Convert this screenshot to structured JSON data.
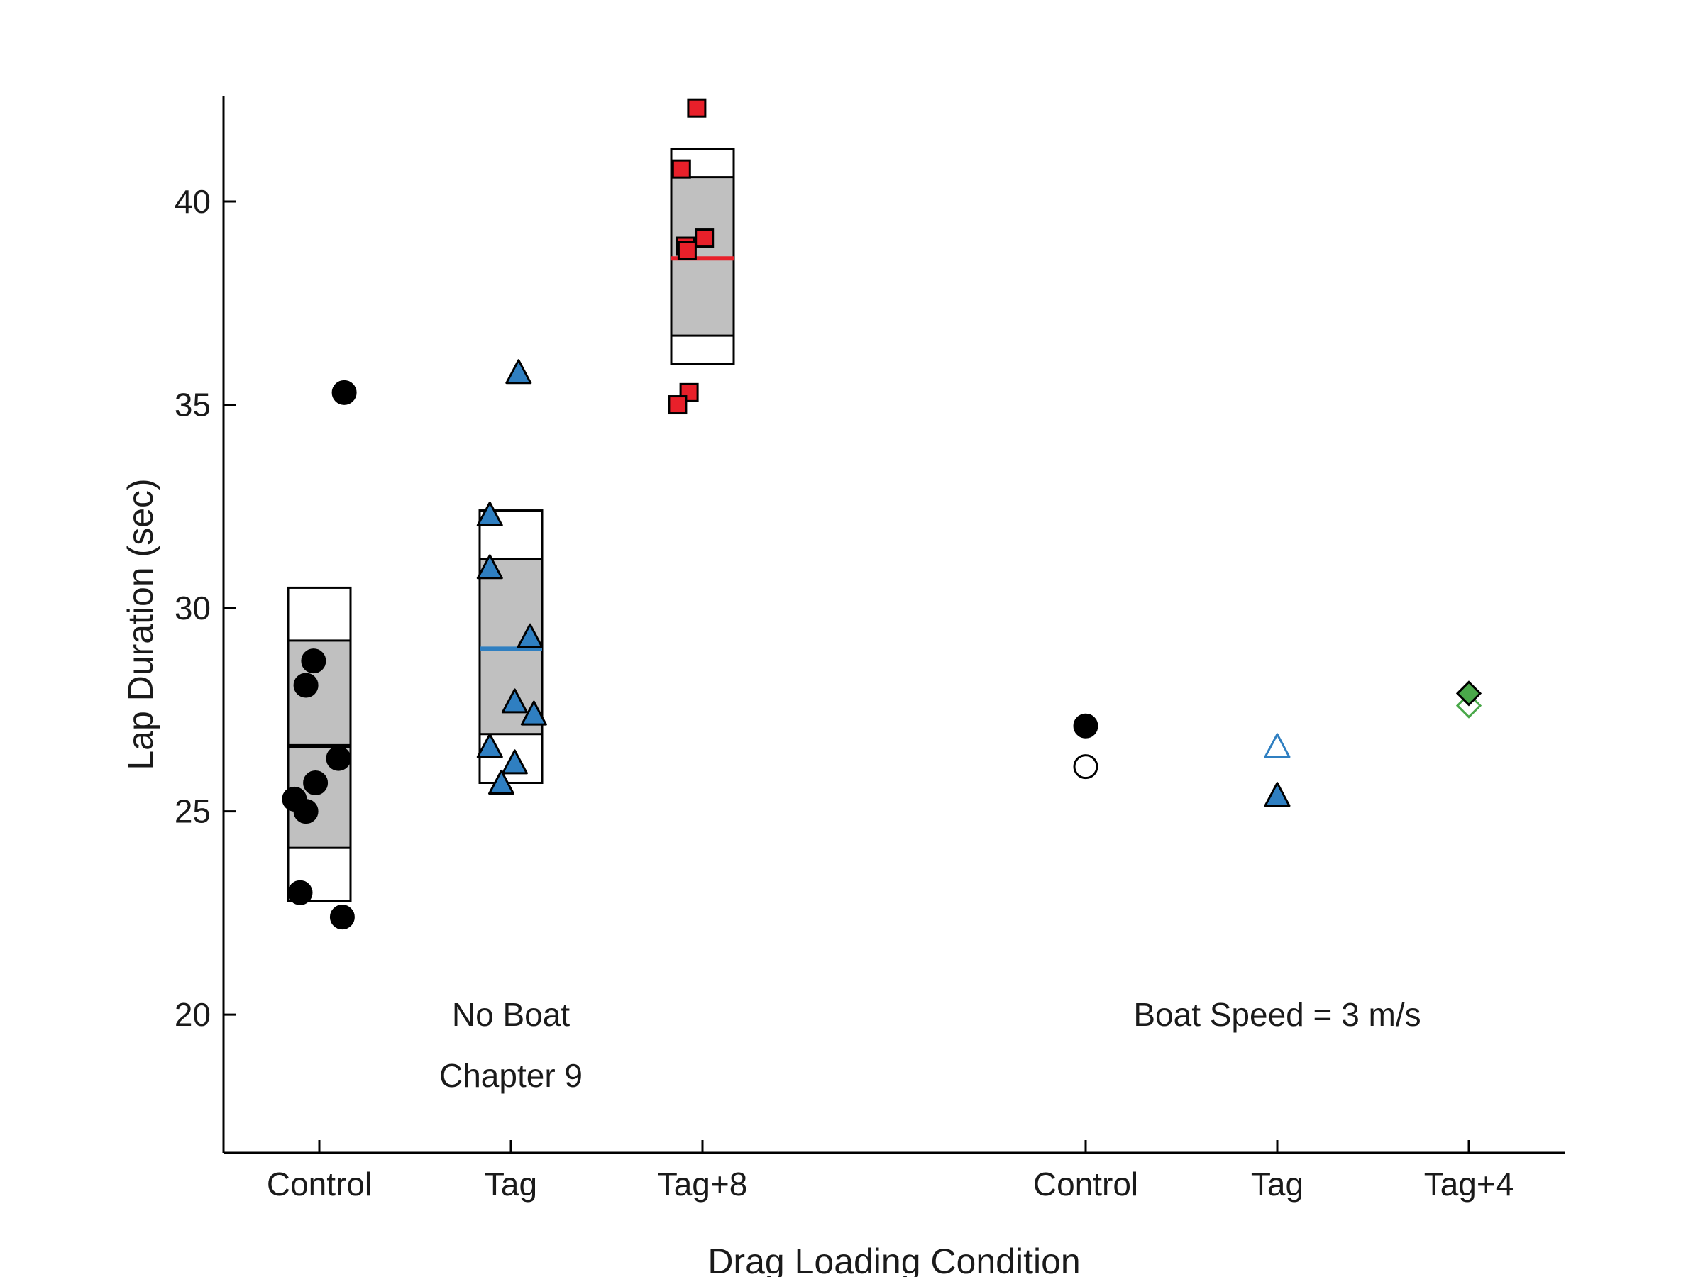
{
  "chart_data": {
    "type": "scatter",
    "title": "",
    "xlabel": "Drag Loading Condition",
    "ylabel": "Lap Duration (sec)",
    "ylim": [
      17,
      43
    ],
    "yticks": [
      20,
      25,
      30,
      35,
      40
    ],
    "grid": false,
    "colors": {
      "control": "#000000",
      "tag": "#2f7fc1",
      "tag_plus": "#e8202a",
      "tag4": "#4aa84a",
      "box_fill": "#c0c0c0",
      "axis": "#000000"
    },
    "categories": [
      {
        "label": "Control",
        "x": 1
      },
      {
        "label": "Tag",
        "x": 2
      },
      {
        "label": "Tag+8",
        "x": 3
      },
      {
        "label": "Control",
        "x": 5
      },
      {
        "label": "Tag",
        "x": 6
      },
      {
        "label": "Tag+4",
        "x": 7
      }
    ],
    "groups": [
      {
        "name": "No Boat Control",
        "x": 1,
        "marker": "circle",
        "color": "#000000",
        "box": {
          "outer_low": 22.8,
          "outer_high": 30.5,
          "inner_low": 24.1,
          "inner_high": 29.2,
          "median": 26.6
        },
        "points": [
          {
            "dx": 0.13,
            "y": 35.3
          },
          {
            "dx": -0.03,
            "y": 28.7
          },
          {
            "dx": -0.07,
            "y": 28.1
          },
          {
            "dx": 0.1,
            "y": 26.3
          },
          {
            "dx": -0.02,
            "y": 25.7
          },
          {
            "dx": -0.13,
            "y": 25.3
          },
          {
            "dx": -0.07,
            "y": 25.0
          },
          {
            "dx": -0.1,
            "y": 23.0
          },
          {
            "dx": 0.12,
            "y": 22.4
          }
        ]
      },
      {
        "name": "No Boat Tag",
        "x": 2,
        "marker": "triangle",
        "color": "#2f7fc1",
        "box": {
          "outer_low": 25.7,
          "outer_high": 32.4,
          "inner_low": 26.9,
          "inner_high": 31.2,
          "median": 29.0
        },
        "points": [
          {
            "dx": 0.04,
            "y": 35.8
          },
          {
            "dx": -0.11,
            "y": 32.3
          },
          {
            "dx": -0.11,
            "y": 31.0
          },
          {
            "dx": 0.1,
            "y": 29.3
          },
          {
            "dx": 0.02,
            "y": 27.7
          },
          {
            "dx": 0.12,
            "y": 27.4
          },
          {
            "dx": -0.11,
            "y": 26.6
          },
          {
            "dx": 0.02,
            "y": 26.2
          },
          {
            "dx": -0.05,
            "y": 25.7
          }
        ]
      },
      {
        "name": "No Boat Tag+8",
        "x": 3,
        "marker": "square",
        "color": "#e8202a",
        "box": {
          "outer_low": 36.0,
          "outer_high": 41.3,
          "inner_low": 36.7,
          "inner_high": 40.6,
          "median": 38.6
        },
        "points": [
          {
            "dx": -0.03,
            "y": 42.3
          },
          {
            "dx": -0.11,
            "y": 40.8
          },
          {
            "dx": 0.01,
            "y": 39.1
          },
          {
            "dx": -0.09,
            "y": 38.9
          },
          {
            "dx": -0.08,
            "y": 38.8
          },
          {
            "dx": -0.07,
            "y": 35.3
          },
          {
            "dx": -0.13,
            "y": 35.0
          }
        ]
      },
      {
        "name": "Boat Control",
        "x": 5,
        "marker": "circle",
        "color": "#000000",
        "points": [
          {
            "dx": 0,
            "y": 27.1,
            "filled": true
          },
          {
            "dx": 0,
            "y": 26.1,
            "filled": false
          }
        ]
      },
      {
        "name": "Boat Tag",
        "x": 6,
        "marker": "triangle",
        "color": "#2f7fc1",
        "points": [
          {
            "dx": 0,
            "y": 26.6,
            "filled": false
          },
          {
            "dx": 0,
            "y": 25.4,
            "filled": true
          }
        ]
      },
      {
        "name": "Boat Tag+4",
        "x": 7,
        "marker": "diamond",
        "color": "#4aa84a",
        "points": [
          {
            "dx": 0,
            "y": 27.6,
            "filled": false
          },
          {
            "dx": 0,
            "y": 27.9,
            "filled": true
          }
        ]
      }
    ],
    "annotations": [
      {
        "id": "no-boat",
        "text": "No Boat",
        "x": 2,
        "y": 20
      },
      {
        "id": "chapter",
        "text": "Chapter 9",
        "x": 2,
        "y": 18.5
      },
      {
        "id": "boat-speed",
        "text": "Boat Speed = 3 m/s",
        "x": 6,
        "y": 20
      }
    ]
  }
}
